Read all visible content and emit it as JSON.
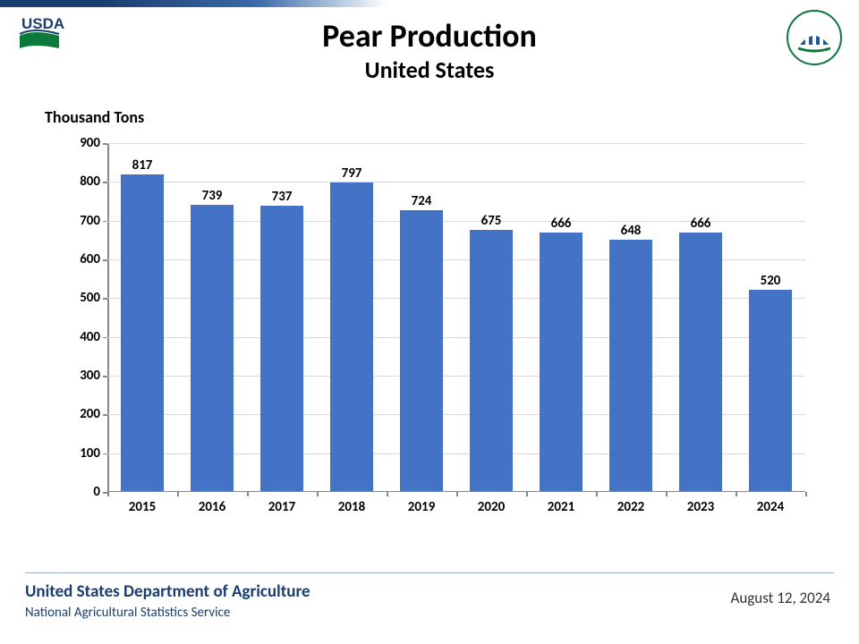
{
  "title": "Pear Production",
  "subtitle": "United States",
  "ylabel": "Thousand Tons",
  "chart": {
    "type": "bar",
    "categories": [
      "2015",
      "2016",
      "2017",
      "2018",
      "2019",
      "2020",
      "2021",
      "2022",
      "2023",
      "2024"
    ],
    "values": [
      817,
      739,
      737,
      797,
      724,
      675,
      666,
      648,
      666,
      520
    ],
    "bar_color": "#4472c4",
    "ylim": [
      0,
      900
    ],
    "ytick_step": 100,
    "background_color": "#ffffff",
    "grid_color": "#d9d9d9",
    "axis_color": "#888888",
    "label_fontsize": 15,
    "label_fontweight": "700",
    "bar_width": 0.62
  },
  "footer": {
    "dept": "United States Department of Agriculture",
    "service": "National Agricultural Statistics Service",
    "date": "August 12, 2024"
  },
  "logos": {
    "usda": "USDA",
    "agriculture_counts": "Agriculture Counts"
  }
}
